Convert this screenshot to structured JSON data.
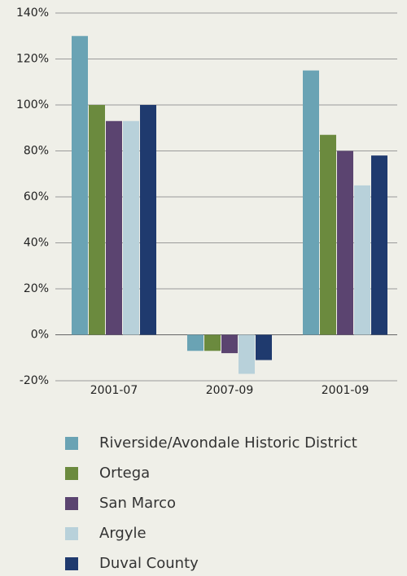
{
  "chart_data": {
    "type": "bar",
    "categories": [
      "2001-07",
      "2007-09",
      "2001-09"
    ],
    "series": [
      {
        "name": "Riverside/Avondale Historic District",
        "color": "#6aa3b4",
        "values": [
          130,
          -7,
          115
        ]
      },
      {
        "name": "Ortega",
        "color": "#6b8a3e",
        "values": [
          100,
          -7,
          87
        ]
      },
      {
        "name": "San Marco",
        "color": "#5b4470",
        "values": [
          93,
          -8,
          80
        ]
      },
      {
        "name": "Argyle",
        "color": "#b8d1da",
        "values": [
          93,
          -17,
          65
        ]
      },
      {
        "name": "Duval County",
        "color": "#1f3a6e",
        "values": [
          100,
          -11,
          78
        ]
      }
    ],
    "ylim": [
      -20,
      140
    ],
    "yticks": [
      {
        "value": -20,
        "label": "-20%"
      },
      {
        "value": 0,
        "label": "0%"
      },
      {
        "value": 20,
        "label": "20%"
      },
      {
        "value": 40,
        "label": "40%"
      },
      {
        "value": 60,
        "label": "60%"
      },
      {
        "value": 80,
        "label": "80%"
      },
      {
        "value": 100,
        "label": "100%"
      },
      {
        "value": 120,
        "label": "120%"
      },
      {
        "value": 140,
        "label": "140%"
      }
    ],
    "grid": true,
    "legend": "bottom"
  }
}
